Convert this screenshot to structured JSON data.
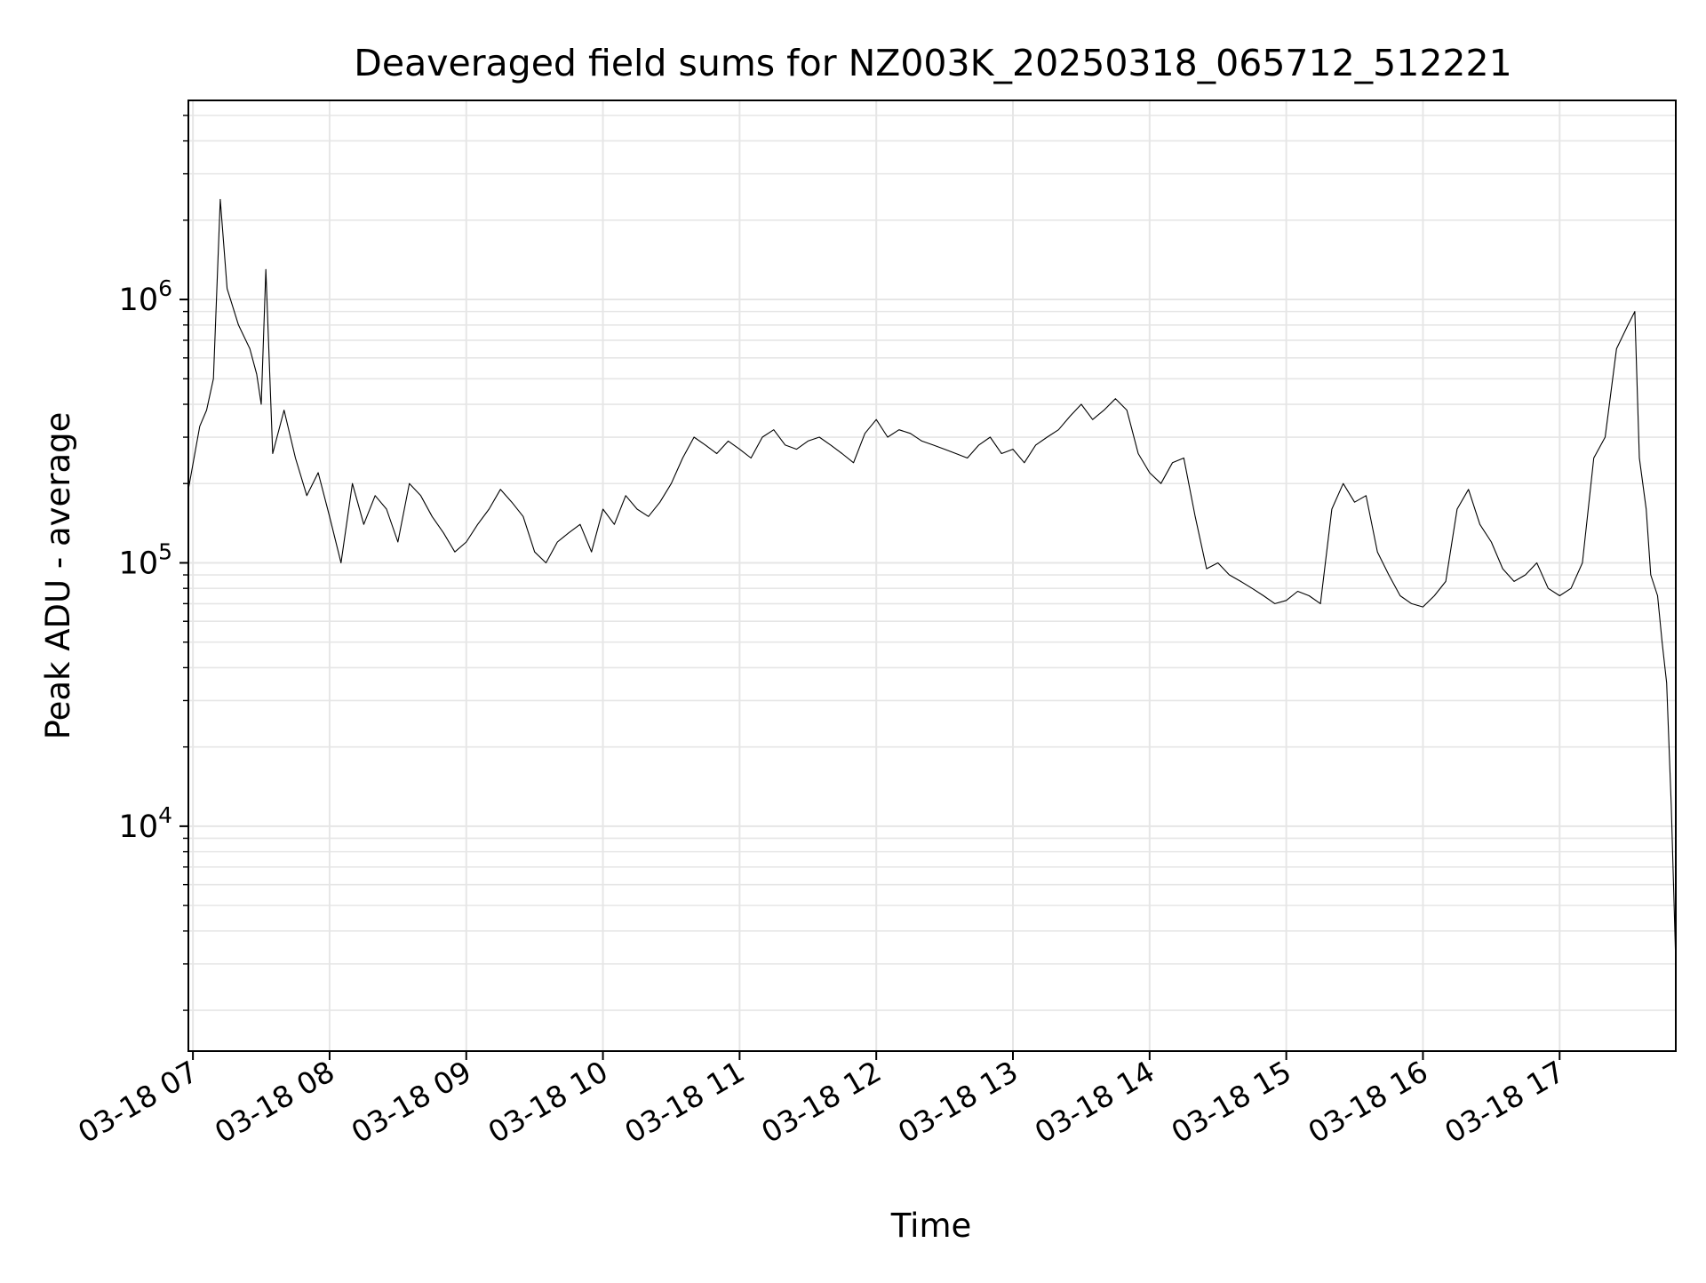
{
  "chart_data": {
    "type": "line",
    "title": "Deaveraged field sums for NZ003K_20250318_065712_512221",
    "xlabel": "Time",
    "ylabel": "Peak ADU - average",
    "xscale": "time",
    "yscale": "log",
    "xlim": [
      "2025-03-18 06:58",
      "2025-03-18 17:51"
    ],
    "ylim": [
      1400,
      5700000
    ],
    "grid": true,
    "legend": "none",
    "line_color": "#000000",
    "grid_color": "#e6e6e6",
    "x_ticks": [
      {
        "value": "2025-03-18 07:00",
        "label": "03-18 07"
      },
      {
        "value": "2025-03-18 08:00",
        "label": "03-18 08"
      },
      {
        "value": "2025-03-18 09:00",
        "label": "03-18 09"
      },
      {
        "value": "2025-03-18 10:00",
        "label": "03-18 10"
      },
      {
        "value": "2025-03-18 11:00",
        "label": "03-18 11"
      },
      {
        "value": "2025-03-18 12:00",
        "label": "03-18 12"
      },
      {
        "value": "2025-03-18 13:00",
        "label": "03-18 13"
      },
      {
        "value": "2025-03-18 14:00",
        "label": "03-18 14"
      },
      {
        "value": "2025-03-18 15:00",
        "label": "03-18 15"
      },
      {
        "value": "2025-03-18 16:00",
        "label": "03-18 16"
      },
      {
        "value": "2025-03-18 17:00",
        "label": "03-18 17"
      }
    ],
    "y_ticks": [
      {
        "value": 10000,
        "label": "10",
        "exponent": "4"
      },
      {
        "value": 100000,
        "label": "10",
        "exponent": "5"
      },
      {
        "value": 1000000,
        "label": "10",
        "exponent": "6"
      }
    ],
    "x": [
      "2025-03-18 06:58",
      "2025-03-18 07:03",
      "2025-03-18 07:06",
      "2025-03-18 07:09",
      "2025-03-18 07:12",
      "2025-03-18 07:15",
      "2025-03-18 07:20",
      "2025-03-18 07:25",
      "2025-03-18 07:28",
      "2025-03-18 07:30",
      "2025-03-18 07:32",
      "2025-03-18 07:35",
      "2025-03-18 07:40",
      "2025-03-18 07:45",
      "2025-03-18 07:50",
      "2025-03-18 07:55",
      "2025-03-18 08:00",
      "2025-03-18 08:05",
      "2025-03-18 08:10",
      "2025-03-18 08:15",
      "2025-03-18 08:20",
      "2025-03-18 08:25",
      "2025-03-18 08:30",
      "2025-03-18 08:35",
      "2025-03-18 08:40",
      "2025-03-18 08:45",
      "2025-03-18 08:50",
      "2025-03-18 08:55",
      "2025-03-18 09:00",
      "2025-03-18 09:05",
      "2025-03-18 09:10",
      "2025-03-18 09:15",
      "2025-03-18 09:20",
      "2025-03-18 09:25",
      "2025-03-18 09:30",
      "2025-03-18 09:35",
      "2025-03-18 09:40",
      "2025-03-18 09:45",
      "2025-03-18 09:50",
      "2025-03-18 09:55",
      "2025-03-18 10:00",
      "2025-03-18 10:05",
      "2025-03-18 10:10",
      "2025-03-18 10:15",
      "2025-03-18 10:20",
      "2025-03-18 10:25",
      "2025-03-18 10:30",
      "2025-03-18 10:35",
      "2025-03-18 10:40",
      "2025-03-18 10:45",
      "2025-03-18 10:50",
      "2025-03-18 10:55",
      "2025-03-18 11:00",
      "2025-03-18 11:05",
      "2025-03-18 11:10",
      "2025-03-18 11:15",
      "2025-03-18 11:20",
      "2025-03-18 11:25",
      "2025-03-18 11:30",
      "2025-03-18 11:35",
      "2025-03-18 11:40",
      "2025-03-18 11:45",
      "2025-03-18 11:50",
      "2025-03-18 11:55",
      "2025-03-18 12:00",
      "2025-03-18 12:05",
      "2025-03-18 12:10",
      "2025-03-18 12:15",
      "2025-03-18 12:20",
      "2025-03-18 12:25",
      "2025-03-18 12:30",
      "2025-03-18 12:35",
      "2025-03-18 12:40",
      "2025-03-18 12:45",
      "2025-03-18 12:50",
      "2025-03-18 12:55",
      "2025-03-18 13:00",
      "2025-03-18 13:05",
      "2025-03-18 13:10",
      "2025-03-18 13:15",
      "2025-03-18 13:20",
      "2025-03-18 13:25",
      "2025-03-18 13:30",
      "2025-03-18 13:35",
      "2025-03-18 13:40",
      "2025-03-18 13:45",
      "2025-03-18 13:50",
      "2025-03-18 13:55",
      "2025-03-18 14:00",
      "2025-03-18 14:05",
      "2025-03-18 14:10",
      "2025-03-18 14:15",
      "2025-03-18 14:20",
      "2025-03-18 14:25",
      "2025-03-18 14:30",
      "2025-03-18 14:35",
      "2025-03-18 14:40",
      "2025-03-18 14:45",
      "2025-03-18 14:50",
      "2025-03-18 14:55",
      "2025-03-18 15:00",
      "2025-03-18 15:05",
      "2025-03-18 15:10",
      "2025-03-18 15:15",
      "2025-03-18 15:20",
      "2025-03-18 15:25",
      "2025-03-18 15:30",
      "2025-03-18 15:35",
      "2025-03-18 15:40",
      "2025-03-18 15:45",
      "2025-03-18 15:50",
      "2025-03-18 15:55",
      "2025-03-18 16:00",
      "2025-03-18 16:05",
      "2025-03-18 16:10",
      "2025-03-18 16:15",
      "2025-03-18 16:20",
      "2025-03-18 16:25",
      "2025-03-18 16:30",
      "2025-03-18 16:35",
      "2025-03-18 16:40",
      "2025-03-18 16:45",
      "2025-03-18 16:50",
      "2025-03-18 16:55",
      "2025-03-18 17:00",
      "2025-03-18 17:05",
      "2025-03-18 17:10",
      "2025-03-18 17:15",
      "2025-03-18 17:20",
      "2025-03-18 17:25",
      "2025-03-18 17:30",
      "2025-03-18 17:33",
      "2025-03-18 17:35",
      "2025-03-18 17:38",
      "2025-03-18 17:40",
      "2025-03-18 17:43",
      "2025-03-18 17:45",
      "2025-03-18 17:47",
      "2025-03-18 17:49",
      "2025-03-18 17:51"
    ],
    "y": [
      190000,
      330000,
      380000,
      500000,
      2400000,
      1100000,
      800000,
      650000,
      520000,
      400000,
      1300000,
      260000,
      380000,
      250000,
      180000,
      220000,
      150000,
      100000,
      200000,
      140000,
      180000,
      160000,
      120000,
      200000,
      180000,
      150000,
      130000,
      110000,
      120000,
      140000,
      160000,
      190000,
      170000,
      150000,
      110000,
      100000,
      120000,
      130000,
      140000,
      110000,
      160000,
      140000,
      180000,
      160000,
      150000,
      170000,
      200000,
      250000,
      300000,
      280000,
      260000,
      290000,
      270000,
      250000,
      300000,
      320000,
      280000,
      270000,
      290000,
      300000,
      280000,
      260000,
      240000,
      310000,
      350000,
      300000,
      320000,
      310000,
      290000,
      280000,
      270000,
      260000,
      250000,
      280000,
      300000,
      260000,
      270000,
      240000,
      280000,
      300000,
      320000,
      360000,
      400000,
      350000,
      380000,
      420000,
      380000,
      260000,
      220000,
      200000,
      240000,
      250000,
      150000,
      95000,
      100000,
      90000,
      85000,
      80000,
      75000,
      70000,
      72000,
      78000,
      75000,
      70000,
      160000,
      200000,
      170000,
      180000,
      110000,
      90000,
      75000,
      70000,
      68000,
      75000,
      85000,
      160000,
      190000,
      140000,
      120000,
      95000,
      85000,
      90000,
      100000,
      80000,
      75000,
      80000,
      100000,
      250000,
      300000,
      650000,
      800000,
      900000,
      250000,
      160000,
      90000,
      75000,
      50000,
      35000,
      12000,
      3000
    ]
  }
}
